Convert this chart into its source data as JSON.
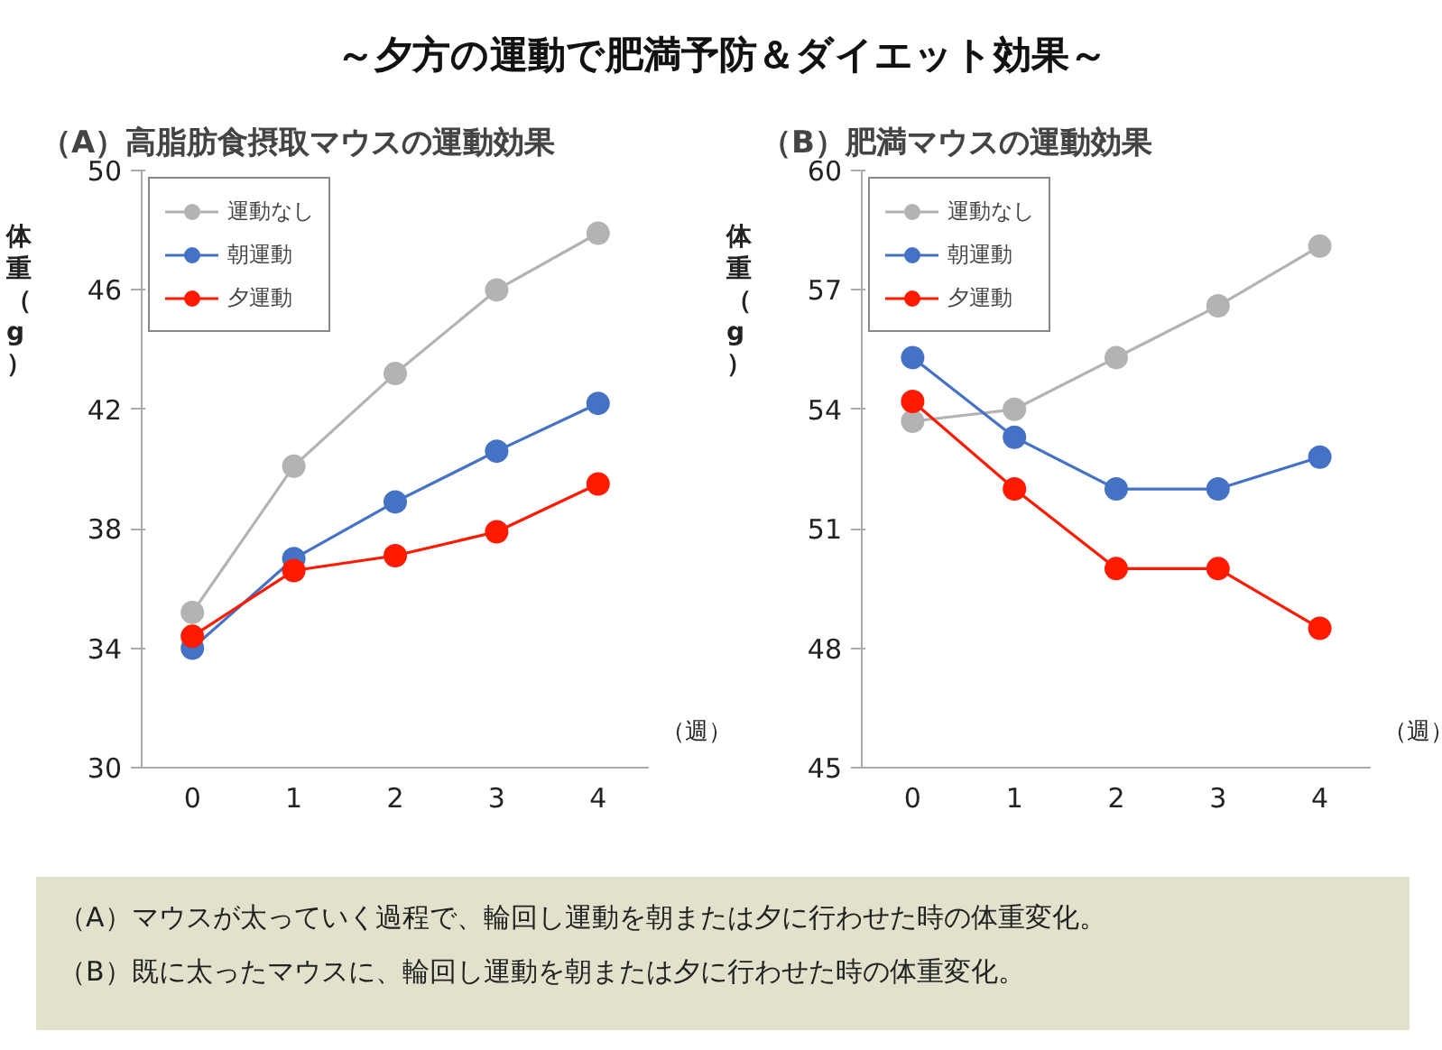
{
  "chart_data": [
    {
      "type": "line",
      "title": "～夕方の運動で肥満予防＆ダイエット効果～",
      "subtitle": "（A）高脂肪食摂取マウスの運動効果",
      "xlabel": "（週）",
      "ylabel": "体重（g）",
      "x": [
        0,
        1,
        2,
        3,
        4
      ],
      "xlim": [
        -0.5,
        4.5
      ],
      "xticks": [
        0,
        1,
        2,
        3,
        4
      ],
      "ylim": [
        30,
        50
      ],
      "yticks": [
        30,
        34,
        38,
        42,
        46,
        50
      ],
      "grid": false,
      "legend": "top left",
      "marker": "circle",
      "series": [
        {
          "name": "運動なし",
          "color": "#b3b3b3",
          "values": [
            35.2,
            40.1,
            43.2,
            46.0,
            47.9
          ]
        },
        {
          "name": "朝運動",
          "color": "#4472c4",
          "values": [
            34.0,
            37.0,
            38.9,
            40.6,
            42.2
          ]
        },
        {
          "name": "夕運動",
          "color": "#ff1a00",
          "values": [
            34.4,
            36.6,
            37.1,
            37.9,
            39.5
          ]
        }
      ],
      "annotations": [
        "（A）マウスが太っていく過程で、輪回し運動を朝または夕に行わせた時の体重変化。",
        "（B）既に太ったマウスに、輪回し運動を朝または夕に行わせた時の体重変化。"
      ]
    },
    {
      "type": "line",
      "subtitle": "（B）肥満マウスの運動効果",
      "xlabel": "（週）",
      "ylabel": "体重（g）",
      "x": [
        0,
        1,
        2,
        3,
        4
      ],
      "xlim": [
        -0.5,
        4.5
      ],
      "xticks": [
        0,
        1,
        2,
        3,
        4
      ],
      "ylim": [
        45,
        60
      ],
      "yticks": [
        45,
        48,
        51,
        54,
        57,
        60
      ],
      "grid": false,
      "legend": "top left",
      "marker": "circle",
      "series": [
        {
          "name": "運動なし",
          "color": "#b3b3b3",
          "values": [
            53.7,
            54.0,
            55.3,
            56.6,
            58.1
          ]
        },
        {
          "name": "朝運動",
          "color": "#4472c4",
          "values": [
            55.3,
            53.3,
            52.0,
            52.0,
            52.8
          ]
        },
        {
          "name": "夕運動",
          "color": "#ff1a00",
          "values": [
            54.2,
            52.0,
            50.0,
            50.0,
            48.5
          ]
        }
      ]
    }
  ]
}
